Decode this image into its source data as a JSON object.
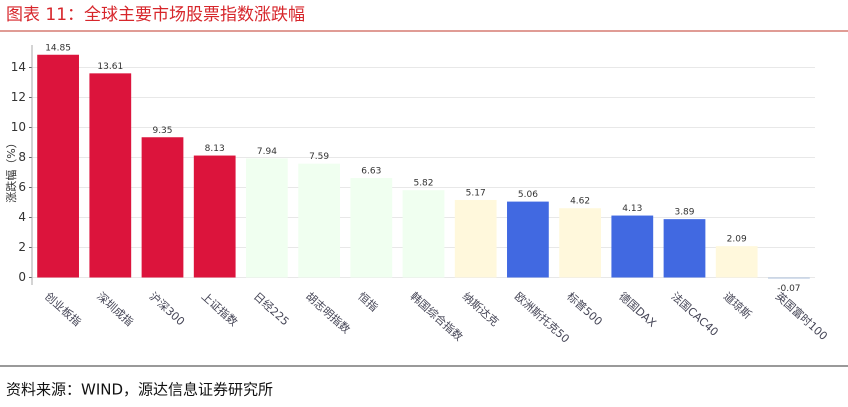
{
  "chart_data": {
    "type": "bar",
    "title": "图表 11：全球主要市场股票指数涨跌幅",
    "source": "资料来源：WIND，源达信息证券研究所",
    "y_label": "涨跌幅（%）",
    "categories": [
      "创业板指",
      "深圳成指",
      "沪深300",
      "上证指数",
      "日经225",
      "胡志明指数",
      "恒指",
      "韩国综合指数",
      "纳斯达克",
      "欧洲斯托克50",
      "标普500",
      "德国DAX",
      "法国CAC40",
      "道琼斯",
      "英国富时100"
    ],
    "values": [
      14.85,
      13.61,
      9.35,
      8.13,
      7.94,
      7.59,
      6.63,
      5.82,
      5.17,
      5.06,
      4.62,
      4.13,
      3.89,
      2.09,
      -0.07
    ],
    "colors": [
      "#dc143c",
      "#dc143c",
      "#dc143c",
      "#dc143c",
      "#f0fff0",
      "#f0fff0",
      "#f0fff0",
      "#f0fff0",
      "#fff8dc",
      "#4169e1",
      "#fff8dc",
      "#4169e1",
      "#4169e1",
      "#fff8dc",
      "#b0c4de"
    ],
    "ylim": [
      -0.5,
      15.5
    ],
    "yticks": [
      0,
      2,
      4,
      6,
      8,
      10,
      12,
      14
    ],
    "grid": true
  }
}
